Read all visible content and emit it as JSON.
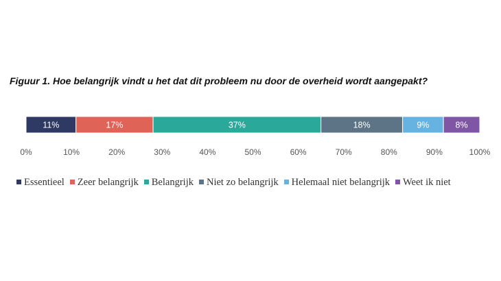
{
  "chart_data": {
    "type": "bar",
    "orientation": "horizontal-stacked-100",
    "title": "Figuur 1. Hoe belangrijk vindt u het dat dit probleem nu door de overheid wordt aangepakt?",
    "xlim": [
      0,
      100
    ],
    "x_ticks": [
      "0%",
      "10%",
      "20%",
      "30%",
      "40%",
      "50%",
      "60%",
      "70%",
      "80%",
      "90%",
      "100%"
    ],
    "grid": false,
    "legend_position": "bottom",
    "series": [
      {
        "name": "Essentieel",
        "value": 11,
        "label": "11%",
        "color": "#2e3a63"
      },
      {
        "name": "Zeer belangrijk",
        "value": 17,
        "label": "17%",
        "color": "#e06357"
      },
      {
        "name": "Belangrijk",
        "value": 37,
        "label": "37%",
        "color": "#2aa99a"
      },
      {
        "name": "Niet zo belangrijk",
        "value": 18,
        "label": "18%",
        "color": "#5d7487"
      },
      {
        "name": "Helemaal niet belangrijk",
        "value": 9,
        "label": "9%",
        "color": "#66b2e0"
      },
      {
        "name": "Weet ik niet",
        "value": 8,
        "label": "8%",
        "color": "#7f56a6"
      }
    ]
  }
}
